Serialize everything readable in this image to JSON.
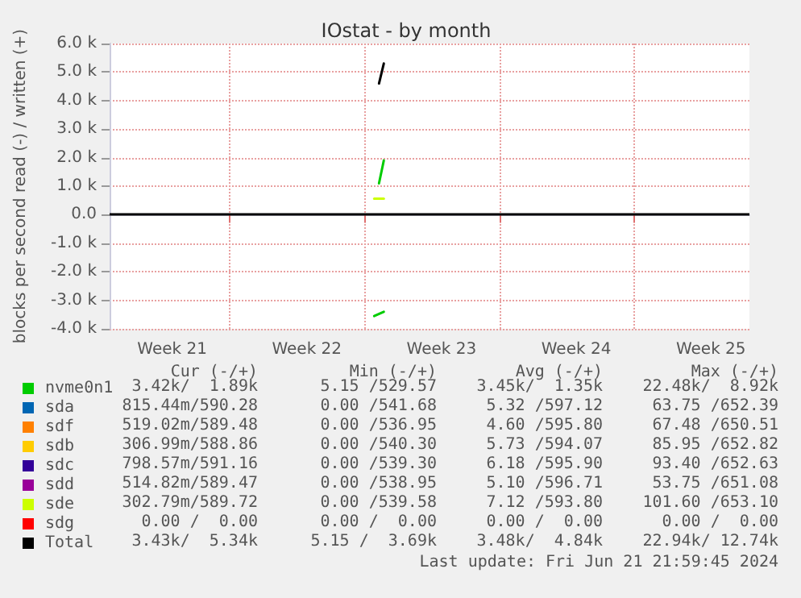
{
  "chart_data": {
    "type": "line",
    "title": "IOstat - by month",
    "ylabel": "blocks per second read (-) / written (+)",
    "xlim": [
      "2024-05-20T18:00",
      "2024-06-23T00:00"
    ],
    "xticks": [
      {
        "value": "2024-05-24",
        "label": "Week 21"
      },
      {
        "value": "2024-05-27",
        "label": null
      },
      {
        "value": "2024-05-31",
        "label": "Week 22"
      },
      {
        "value": "2024-06-03",
        "label": null
      },
      {
        "value": "2024-06-07",
        "label": "Week 23"
      },
      {
        "value": "2024-06-10",
        "label": null
      },
      {
        "value": "2024-06-14",
        "label": "Week 24"
      },
      {
        "value": "2024-06-17",
        "label": null
      },
      {
        "value": "2024-06-21",
        "label": "Week 25"
      }
    ],
    "ylim": [
      -4000,
      6000
    ],
    "yticks": [
      {
        "value": -4000,
        "label": "-4.0 k"
      },
      {
        "value": -3000,
        "label": "-3.0 k"
      },
      {
        "value": -2000,
        "label": "-2.0 k"
      },
      {
        "value": -1000,
        "label": "-1.0 k"
      },
      {
        "value": 0,
        "label": "0.0"
      },
      {
        "value": 1000,
        "label": "1.0 k"
      },
      {
        "value": 2000,
        "label": "2.0 k"
      },
      {
        "value": 3000,
        "label": "3.0 k"
      },
      {
        "value": 4000,
        "label": "4.0 k"
      },
      {
        "value": 5000,
        "label": "5.0 k"
      },
      {
        "value": 6000,
        "label": "6.0 k"
      }
    ],
    "grid": true,
    "legend": "bottom left",
    "marker": "none",
    "line_style": "solid",
    "ref_lines": [
      {
        "axis": "y",
        "value": 0,
        "color": "#000000"
      }
    ],
    "series": [
      {
        "name": "nvme0n1",
        "color": "#00cc00",
        "x": [
          "2024-06-03T18:00",
          "2024-06-04T00:00"
        ],
        "values": [
          1100,
          1900
        ]
      },
      {
        "name": "sda",
        "color": "#0066b3"
      },
      {
        "name": "sdf",
        "color": "#ff8000"
      },
      {
        "name": "sdb",
        "color": "#ffcc00"
      },
      {
        "name": "sdc",
        "color": "#330099"
      },
      {
        "name": "sdd",
        "color": "#990099"
      },
      {
        "name": "sde",
        "color": "#ccff00",
        "x": [
          "2024-06-03T12:00",
          "2024-06-04T00:00"
        ],
        "values": [
          560,
          560
        ]
      },
      {
        "name": "sdg",
        "color": "#ff0000"
      },
      {
        "name": "Total",
        "color": "#000000",
        "x": [
          "2024-06-03T18:00",
          "2024-06-04T00:00"
        ],
        "values": [
          4600,
          5300
        ]
      },
      {
        "color": "#00cc00",
        "x": [
          "2024-06-03T12:00",
          "2024-06-04T00:00"
        ],
        "values": [
          -3550,
          -3400
        ]
      }
    ],
    "annotations": [
      "Cur (-/+)",
      "Min (-/+)",
      "Avg (-/+)",
      "Max (-/+)",
      "3.42k/  1.89k",
      "5.15 /529.57",
      "3.45k/  1.35k",
      "22.48k/  8.92k",
      "815.44m/590.28",
      "0.00 /541.68",
      "5.32 /597.12",
      "63.75 /652.39",
      "519.02m/589.48",
      "0.00 /536.95",
      "4.60 /595.80",
      "67.48 /650.51",
      "306.99m/588.86",
      "0.00 /540.30",
      "5.73 /594.07",
      "85.95 /652.82",
      "798.57m/591.16",
      "0.00 /539.30",
      "6.18 /595.90",
      "93.40 /652.63",
      "514.82m/589.47",
      "0.00 /538.95",
      "5.10 /596.71",
      "53.75 /651.08",
      "302.79m/589.72",
      "0.00 /539.58",
      "7.12 /593.80",
      "101.60 /653.10",
      "0.00 /  0.00",
      "0.00 /  0.00",
      "0.00 /  0.00",
      "0.00 /  0.00",
      "3.43k/  5.34k",
      "5.15 /  3.69k",
      "3.48k/  4.84k",
      "22.94k/ 12.74k",
      "Last update: Fri Jun 21 21:59:45 2024"
    ]
  }
}
